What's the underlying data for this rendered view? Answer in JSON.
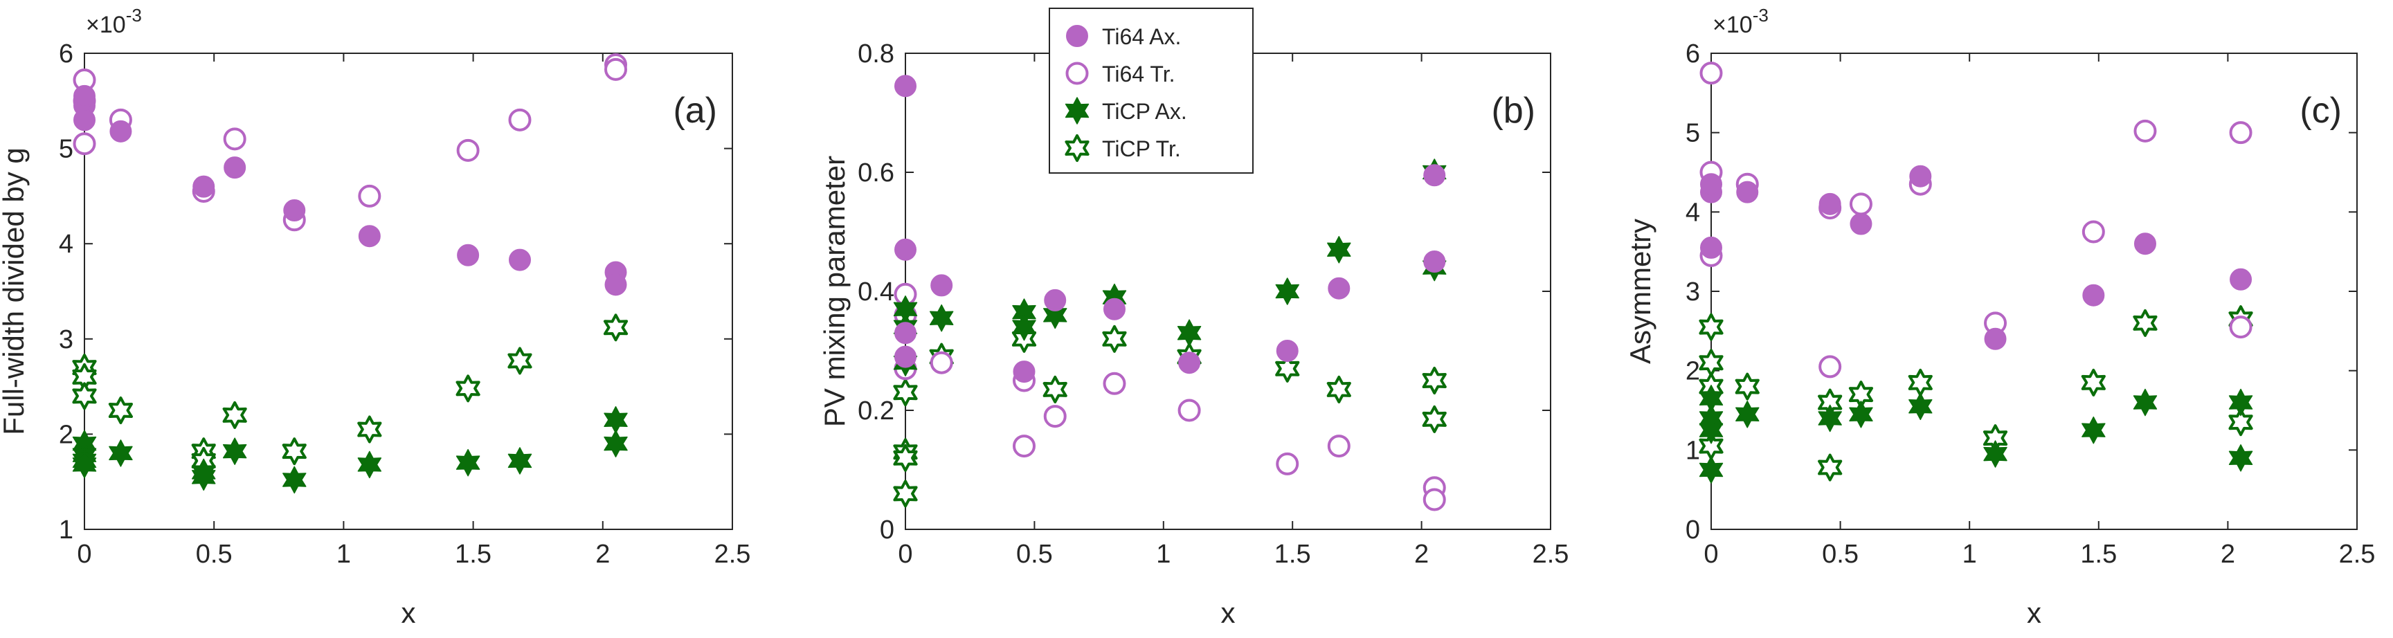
{
  "colors": {
    "ti64": "#B565C3",
    "ticp": "#0A6E0A",
    "axis": "#262626",
    "background": "#ffffff"
  },
  "legend": {
    "entries": [
      {
        "label": "Ti64 Ax.",
        "series": "ti64_ax"
      },
      {
        "label": "Ti64 Tr.",
        "series": "ti64_tr"
      },
      {
        "label": "TiCP Ax.",
        "series": "ticp_ax"
      },
      {
        "label": "TiCP Tr.",
        "series": "ticp_tr"
      }
    ]
  },
  "chart_data": [
    {
      "type": "scatter",
      "panel_label": "(a)",
      "xlabel": "x",
      "ylabel": "Full-width divided by g",
      "y_multiplier": "×10",
      "y_multiplier_exp": "-3",
      "xlim": [
        0,
        2.5
      ],
      "ylim": [
        1,
        6
      ],
      "xticks": [
        "0",
        "0.5",
        "1",
        "1.5",
        "2",
        "2.5"
      ],
      "yticks": [
        "1",
        "2",
        "3",
        "4",
        "5",
        "6"
      ],
      "xtick_values": [
        0,
        0.5,
        1,
        1.5,
        2,
        2.5
      ],
      "ytick_values": [
        1,
        2,
        3,
        4,
        5,
        6
      ],
      "series": [
        {
          "name": "Ti64 Ax.",
          "key": "ti64_ax",
          "marker": "circle-filled",
          "x": [
            0,
            0,
            0,
            0.14,
            0.46,
            0.58,
            0.81,
            1.1,
            1.48,
            1.68,
            2.05,
            2.05
          ],
          "y": [
            5.45,
            5.3,
            5.55,
            5.18,
            4.6,
            4.8,
            4.35,
            4.08,
            3.88,
            3.83,
            3.7,
            3.57
          ]
        },
        {
          "name": "Ti64 Tr.",
          "key": "ti64_tr",
          "marker": "circle-open",
          "x": [
            0,
            0,
            0,
            0.14,
            0.46,
            0.58,
            0.81,
            1.1,
            1.48,
            1.68,
            2.05,
            2.05
          ],
          "y": [
            5.72,
            5.5,
            5.05,
            5.3,
            4.55,
            5.1,
            4.25,
            4.5,
            4.98,
            5.3,
            5.88,
            5.83
          ]
        },
        {
          "name": "TiCP Ax.",
          "key": "ticp_ax",
          "marker": "star-filled",
          "x": [
            0,
            0,
            0,
            0,
            0.14,
            0.46,
            0.46,
            0.58,
            0.81,
            1.1,
            1.48,
            1.68,
            2.05,
            2.05
          ],
          "y": [
            1.9,
            1.78,
            1.72,
            1.68,
            1.8,
            1.6,
            1.55,
            1.82,
            1.52,
            1.68,
            1.7,
            1.72,
            2.15,
            1.9
          ]
        },
        {
          "name": "TiCP Tr.",
          "key": "ticp_tr",
          "marker": "star-open",
          "x": [
            0,
            0,
            0,
            0.14,
            0.46,
            0.46,
            0.58,
            0.81,
            1.1,
            1.48,
            1.68,
            2.05
          ],
          "y": [
            2.7,
            2.6,
            2.4,
            2.25,
            1.82,
            1.72,
            2.2,
            1.82,
            2.05,
            2.48,
            2.77,
            3.12
          ]
        }
      ]
    },
    {
      "type": "scatter",
      "panel_label": "(b)",
      "xlabel": "x",
      "ylabel": "PV mixing parameter",
      "xlim": [
        0,
        2.5
      ],
      "ylim": [
        0,
        0.8
      ],
      "xticks": [
        "0",
        "0.5",
        "1",
        "1.5",
        "2",
        "2.5"
      ],
      "yticks": [
        "0",
        "0.2",
        "0.4",
        "0.6",
        "0.8"
      ],
      "xtick_values": [
        0,
        0.5,
        1,
        1.5,
        2,
        2.5
      ],
      "ytick_values": [
        0,
        0.2,
        0.4,
        0.6,
        0.8
      ],
      "series": [
        {
          "name": "Ti64 Ax.",
          "key": "ti64_ax",
          "marker": "circle-filled",
          "x": [
            0,
            0,
            0,
            0,
            0.14,
            0.46,
            0.58,
            0.81,
            1.1,
            1.48,
            1.68,
            2.05,
            2.05
          ],
          "y": [
            0.745,
            0.47,
            0.33,
            0.29,
            0.41,
            0.265,
            0.385,
            0.37,
            0.28,
            0.3,
            0.405,
            0.595,
            0.45
          ]
        },
        {
          "name": "Ti64 Tr.",
          "key": "ti64_tr",
          "marker": "circle-open",
          "x": [
            0,
            0,
            0,
            0.14,
            0.46,
            0.46,
            0.58,
            0.81,
            1.1,
            1.48,
            1.68,
            2.05,
            2.05
          ],
          "y": [
            0.395,
            0.36,
            0.27,
            0.28,
            0.25,
            0.14,
            0.19,
            0.245,
            0.2,
            0.11,
            0.14,
            0.07,
            0.05
          ]
        },
        {
          "name": "TiCP Ax.",
          "key": "ticp_ax",
          "marker": "star-filled",
          "x": [
            0,
            0,
            0,
            0.14,
            0.46,
            0.46,
            0.58,
            0.81,
            1.1,
            1.48,
            1.68,
            2.05,
            2.05
          ],
          "y": [
            0.37,
            0.34,
            0.28,
            0.355,
            0.365,
            0.34,
            0.36,
            0.39,
            0.33,
            0.4,
            0.47,
            0.6,
            0.44
          ]
        },
        {
          "name": "TiCP Tr.",
          "key": "ticp_tr",
          "marker": "star-open",
          "x": [
            0,
            0,
            0,
            0,
            0.14,
            0.46,
            0.58,
            0.81,
            1.1,
            1.48,
            1.68,
            2.05,
            2.05
          ],
          "y": [
            0.23,
            0.13,
            0.12,
            0.06,
            0.29,
            0.32,
            0.235,
            0.32,
            0.29,
            0.27,
            0.235,
            0.25,
            0.185
          ]
        }
      ]
    },
    {
      "type": "scatter",
      "panel_label": "(c)",
      "xlabel": "x",
      "ylabel": "Asymmetry",
      "y_multiplier": "×10",
      "y_multiplier_exp": "-3",
      "xlim": [
        0,
        2.5
      ],
      "ylim": [
        0,
        6
      ],
      "xticks": [
        "0",
        "0.5",
        "1",
        "1.5",
        "2",
        "2.5"
      ],
      "yticks": [
        "0",
        "1",
        "2",
        "3",
        "4",
        "5",
        "6"
      ],
      "xtick_values": [
        0,
        0.5,
        1,
        1.5,
        2,
        2.5
      ],
      "ytick_values": [
        0,
        1,
        2,
        3,
        4,
        5,
        6
      ],
      "series": [
        {
          "name": "Ti64 Ax.",
          "key": "ti64_ax",
          "marker": "circle-filled",
          "x": [
            0,
            0,
            0,
            0.14,
            0.46,
            0.58,
            0.81,
            1.1,
            1.48,
            1.68,
            2.05
          ],
          "y": [
            4.25,
            3.55,
            4.35,
            4.25,
            4.1,
            3.85,
            4.45,
            2.4,
            2.95,
            3.6,
            3.15
          ]
        },
        {
          "name": "Ti64 Tr.",
          "key": "ti64_tr",
          "marker": "circle-open",
          "x": [
            0,
            0,
            0,
            0.14,
            0.46,
            0.46,
            0.58,
            0.81,
            1.1,
            1.48,
            1.68,
            2.05,
            2.05
          ],
          "y": [
            5.75,
            4.5,
            3.45,
            4.35,
            4.05,
            2.05,
            4.1,
            4.35,
            2.6,
            3.75,
            5.02,
            5.0,
            2.55
          ]
        },
        {
          "name": "TiCP Ax.",
          "key": "ticp_ax",
          "marker": "star-filled",
          "x": [
            0,
            0,
            0,
            0,
            0.14,
            0.46,
            0.58,
            0.81,
            1.1,
            1.48,
            1.68,
            2.05,
            2.05
          ],
          "y": [
            1.65,
            1.4,
            1.25,
            0.75,
            1.45,
            1.4,
            1.45,
            1.55,
            0.95,
            1.25,
            1.6,
            1.6,
            0.9
          ]
        },
        {
          "name": "TiCP Tr.",
          "key": "ticp_tr",
          "marker": "star-open",
          "x": [
            0,
            0,
            0,
            0,
            0.14,
            0.46,
            0.46,
            0.58,
            0.81,
            1.1,
            1.48,
            1.68,
            2.05,
            2.05
          ],
          "y": [
            2.55,
            2.1,
            1.8,
            1.05,
            1.8,
            1.6,
            0.78,
            1.7,
            1.85,
            1.15,
            1.85,
            2.6,
            2.65,
            1.35
          ]
        }
      ]
    }
  ]
}
